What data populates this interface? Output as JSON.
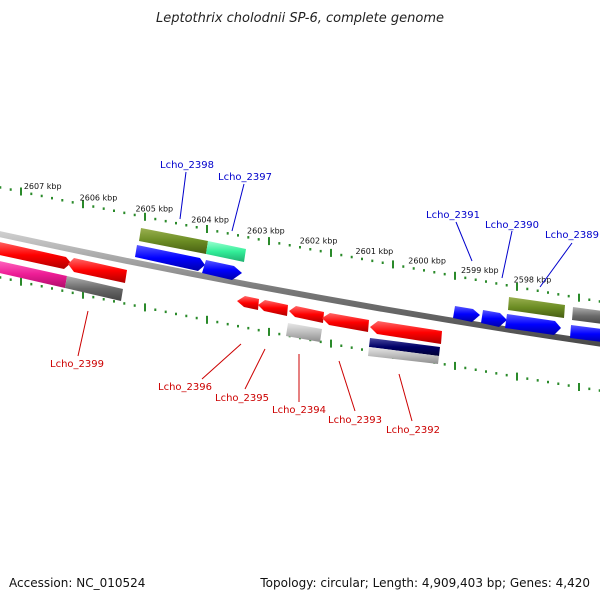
{
  "title": "Leptothrix cholodnii SP-6, complete genome",
  "footer": {
    "accession": "Accession: NC_010524",
    "summary": "Topology: circular; Length: 4,909,403 bp; Genes: 4,420"
  },
  "colors": {
    "forward_label": "#0000cc",
    "reverse_label": "#cc0000",
    "tick": "#2a8a2a",
    "backbone": "#7a7a7a"
  },
  "scale_labels": [
    "2607 kbp",
    "2606 kbp",
    "2605 kbp",
    "2604 kbp",
    "2603 kbp",
    "2602 kbp",
    "2601 kbp",
    "2600 kbp",
    "2599 kbp",
    "2598 kbp"
  ],
  "genes": [
    {
      "name": "Lcho_2398",
      "strand": "forward"
    },
    {
      "name": "Lcho_2397",
      "strand": "forward"
    },
    {
      "name": "Lcho_2391",
      "strand": "forward"
    },
    {
      "name": "Lcho_2390",
      "strand": "forward"
    },
    {
      "name": "Lcho_2389",
      "strand": "forward"
    },
    {
      "name": "Lcho_2399",
      "strand": "reverse"
    },
    {
      "name": "Lcho_2396",
      "strand": "reverse"
    },
    {
      "name": "Lcho_2395",
      "strand": "reverse"
    },
    {
      "name": "Lcho_2394",
      "strand": "reverse"
    },
    {
      "name": "Lcho_2393",
      "strand": "reverse"
    },
    {
      "name": "Lcho_2392",
      "strand": "reverse"
    }
  ]
}
